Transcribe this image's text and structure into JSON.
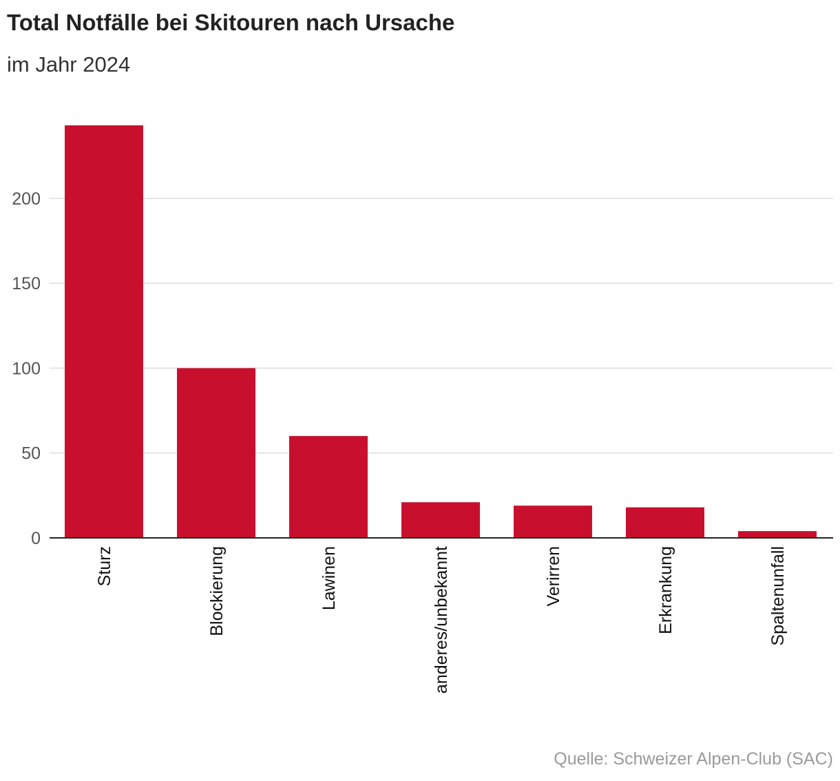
{
  "chart_data": {
    "type": "bar",
    "title": "Total Notfälle bei Skitouren nach Ursache",
    "subtitle": "im Jahr 2024",
    "categories": [
      "Sturz",
      "Blockierung",
      "Lawinen",
      "anderes/unbekannt",
      "Verirren",
      "Erkrankung",
      "Spaltenunfall"
    ],
    "values": [
      243,
      100,
      60,
      21,
      19,
      18,
      4
    ],
    "yticks": [
      0,
      50,
      100,
      150,
      200
    ],
    "ylim": [
      0,
      243
    ],
    "xlabel": "",
    "ylabel": "",
    "grid": true,
    "bar_color": "#c8102e",
    "source": "Quelle: Schweizer Alpen-Club (SAC)"
  }
}
